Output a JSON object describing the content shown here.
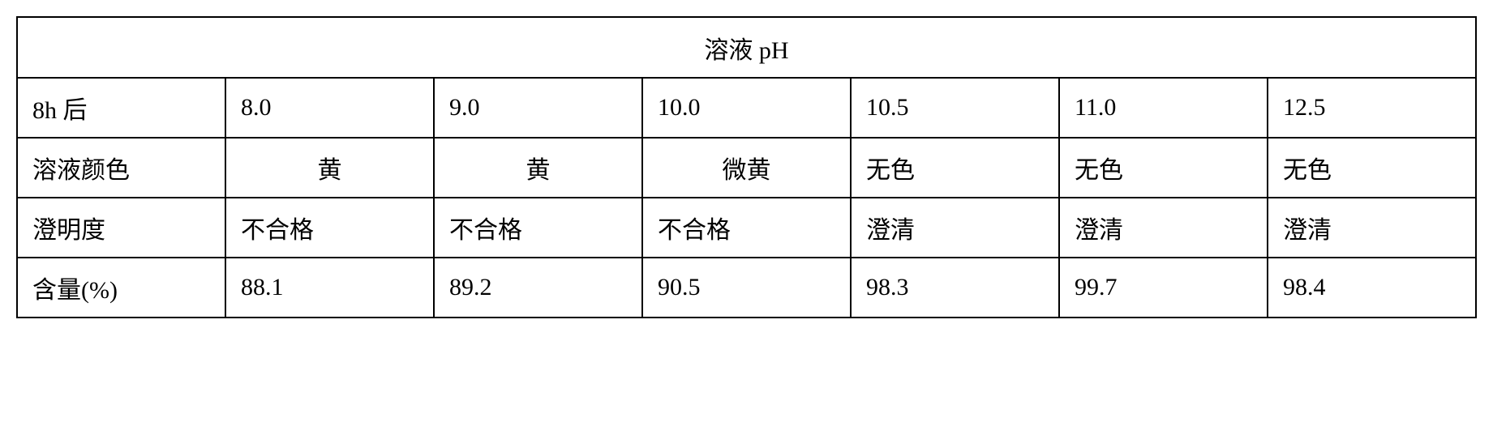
{
  "table": {
    "header": "溶液 pH",
    "columns": [
      "8.0",
      "9.0",
      "10.0",
      "10.5",
      "11.0",
      "12.5"
    ],
    "rows": [
      {
        "label": "8h 后",
        "cells": [
          "8.0",
          "9.0",
          "10.0",
          "10.5",
          "11.0",
          "12.5"
        ],
        "alignments": [
          "left",
          "left",
          "left",
          "left",
          "left",
          "left"
        ]
      },
      {
        "label": "溶液颜色",
        "cells": [
          "黄",
          "黄",
          "微黄",
          "无色",
          "无色",
          "无色"
        ],
        "alignments": [
          "center",
          "center",
          "center",
          "left",
          "left",
          "left"
        ]
      },
      {
        "label": "澄明度",
        "cells": [
          "不合格",
          "不合格",
          "不合格",
          "澄清",
          "澄清",
          "澄清"
        ],
        "alignments": [
          "left",
          "left",
          "left",
          "left",
          "left",
          "left"
        ]
      },
      {
        "label": "含量(%)",
        "cells": [
          "88.1",
          "89.2",
          "90.5",
          "98.3",
          "99.7",
          "98.4"
        ],
        "alignments": [
          "left",
          "left",
          "left",
          "left",
          "left",
          "left"
        ]
      }
    ],
    "styling": {
      "border_color": "#000000",
      "border_width": 2,
      "background_color": "#ffffff",
      "text_color": "#000000",
      "font_family": "SimSun",
      "font_size": 30,
      "cell_padding": 14
    }
  }
}
